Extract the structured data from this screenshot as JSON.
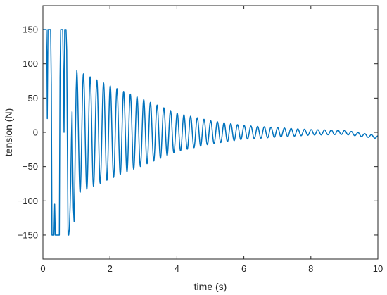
{
  "chart_data": {
    "type": "line",
    "title": "",
    "xlabel": "time (s)",
    "ylabel": "tension (N)",
    "xlim": [
      0,
      10
    ],
    "ylim": [
      -185,
      185
    ],
    "xticks": [
      0,
      2,
      4,
      6,
      8,
      10
    ],
    "yticks": [
      150,
      100,
      50,
      0,
      -50,
      -100,
      -150
    ],
    "xtick_labels": [
      "0",
      "2",
      "4",
      "6",
      "8",
      "10"
    ],
    "ytick_labels": [
      "150",
      "100",
      "50",
      "0",
      "−50",
      "−100",
      "−150"
    ],
    "grid": false,
    "legend": "none",
    "series": [
      {
        "color": "#0072BD",
        "x": [
          0,
          0.02,
          0.1,
          0.12,
          0.13,
          0.15,
          0.17,
          0.19,
          0.21,
          0.23,
          0.25,
          0.27,
          0.29,
          0.31,
          0.33,
          0.35,
          0.37,
          0.39,
          0.41,
          0.43,
          0.45,
          0.47,
          0.49,
          0.51,
          0.53,
          0.55,
          0.57,
          0.59,
          0.61,
          0.63,
          0.65,
          0.67,
          0.69,
          0.71,
          0.73,
          0.75,
          0.77,
          0.79,
          0.81,
          0.83,
          0.85,
          0.87,
          0.89,
          0.91,
          0.93,
          0.95,
          0.97,
          0.99,
          1.01
        ],
        "y": [
          150,
          150,
          150,
          100,
          20,
          150,
          150,
          150,
          150,
          150,
          70,
          -150,
          -150,
          -150,
          -150,
          -105,
          -150,
          -150,
          -150,
          -150,
          -150,
          -150,
          -150,
          80,
          150,
          150,
          150,
          150,
          90,
          0,
          150,
          150,
          150,
          120,
          -20,
          -150,
          -150,
          -140,
          -110,
          -70,
          -10,
          30,
          -50,
          -110,
          -130,
          -80,
          0,
          60,
          90
        ]
      }
    ],
    "continuation": {
      "t_start": 1.01,
      "t_end": 10,
      "period": 0.2,
      "envelope": [
        {
          "t": 1.0,
          "amp": 90
        },
        {
          "t": 2.0,
          "amp": 68
        },
        {
          "t": 3.0,
          "amp": 48
        },
        {
          "t": 4.0,
          "amp": 28
        },
        {
          "t": 5.0,
          "amp": 17
        },
        {
          "t": 6.0,
          "amp": 10
        },
        {
          "t": 7.0,
          "amp": 7
        },
        {
          "t": 8.0,
          "amp": 4
        },
        {
          "t": 9.0,
          "amp": 3
        },
        {
          "t": 10.0,
          "amp": 2
        }
      ],
      "offset": [
        {
          "t": 1.0,
          "y": 0
        },
        {
          "t": 9.0,
          "y": 0
        },
        {
          "t": 10.0,
          "y": -7
        }
      ]
    }
  }
}
